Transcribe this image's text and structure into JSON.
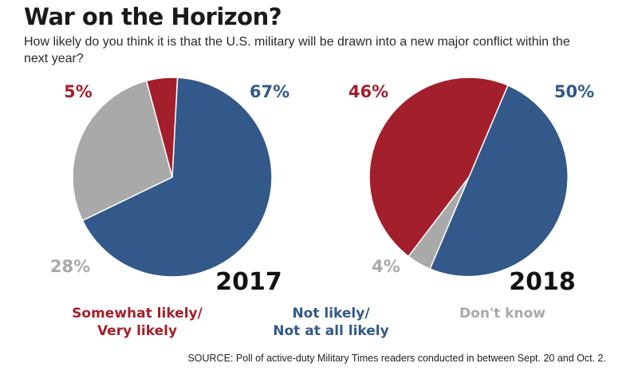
{
  "title": "War on the Horizon?",
  "subtitle": "How likely do you think it is that the U.S. military will be drawn into a new major conflict within the next year?",
  "source": "SOURCE: Poll of active-duty Military Times readers conducted in between Sept. 20 and Oct. 2.",
  "colors": {
    "likely": "#a31f2b",
    "not_likely": "#33588a",
    "dont_know": "#a9a9a9"
  },
  "legend": [
    {
      "key": "likely",
      "label": "Somewhat likely/\nVery likely"
    },
    {
      "key": "not_likely",
      "label": "Not likely/\nNot at all likely"
    },
    {
      "key": "dont_know",
      "label": "Don't know"
    }
  ],
  "chart_data": [
    {
      "type": "pie",
      "title": "2017",
      "slices": [
        {
          "key": "likely",
          "label": "Somewhat likely/Very likely",
          "value": 5,
          "display": "5%"
        },
        {
          "key": "not_likely",
          "label": "Not likely/Not at all likely",
          "value": 67,
          "display": "67%"
        },
        {
          "key": "dont_know",
          "label": "Don't know",
          "value": 28,
          "display": "28%"
        }
      ]
    },
    {
      "type": "pie",
      "title": "2018",
      "slices": [
        {
          "key": "likely",
          "label": "Somewhat likely/Very likely",
          "value": 46,
          "display": "46%"
        },
        {
          "key": "not_likely",
          "label": "Not likely/Not at all likely",
          "value": 50,
          "display": "50%"
        },
        {
          "key": "dont_know",
          "label": "Don't know",
          "value": 4,
          "display": "4%"
        }
      ]
    }
  ]
}
